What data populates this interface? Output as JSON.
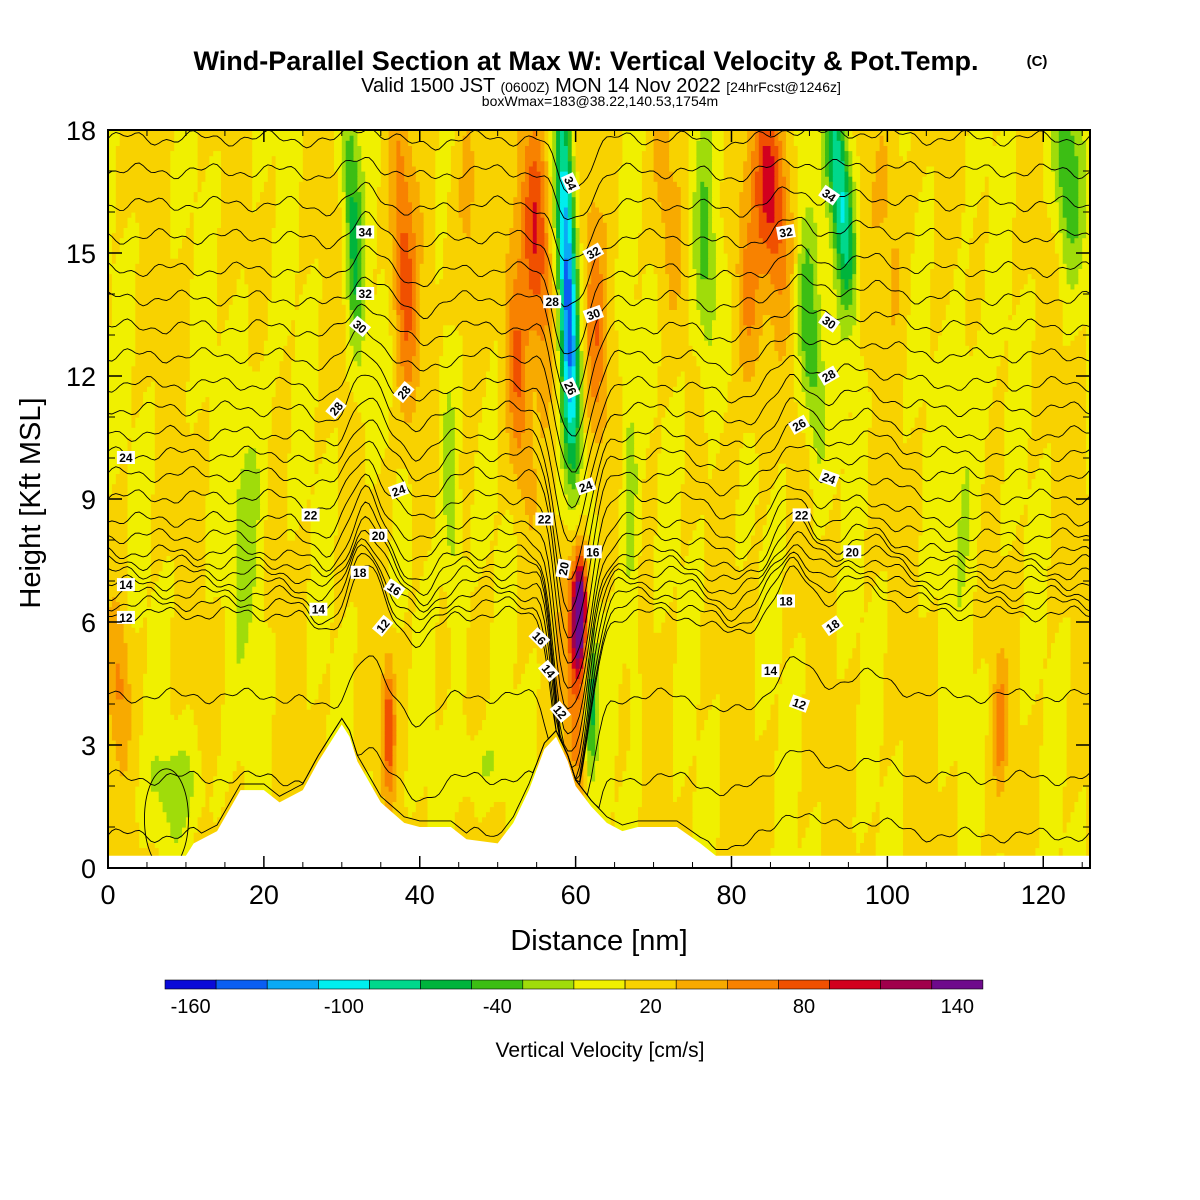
{
  "title": {
    "main": "Wind-Parallel Section at Max W: Vertical Velocity & Pot.Temp.",
    "copyright": "(C)",
    "sub_parts": [
      {
        "text": "Valid 1500 JST ",
        "size": "big"
      },
      {
        "text": "(0600Z)",
        "size": "small"
      },
      {
        "text": " MON 14 Nov 2022 ",
        "size": "big"
      },
      {
        "text": "[24hrFcst@1246z]",
        "size": "small"
      }
    ],
    "info": "boxWmax=183@38.22,140.53,1754m"
  },
  "chart_data": {
    "type": "heatmap",
    "xlabel": "Distance [nm]",
    "ylabel": "Height [Kft MSL]",
    "xlim": [
      0,
      126
    ],
    "ylim": [
      0,
      18
    ],
    "xticks": [
      0,
      20,
      40,
      60,
      80,
      100,
      120
    ],
    "yticks": [
      0,
      3,
      6,
      9,
      12,
      15,
      18
    ],
    "colorbar": {
      "title": "Vertical Velocity [cm/s]",
      "levels": [
        -170,
        -150,
        -130,
        -110,
        -90,
        -70,
        -50,
        -30,
        -10,
        10,
        30,
        50,
        70,
        90,
        110,
        130,
        150,
        170
      ],
      "colors": [
        "#0a0ad8",
        "#0a5ef2",
        "#0aaaf5",
        "#00eeee",
        "#00d88c",
        "#00b43c",
        "#3cbe14",
        "#a0dc0a",
        "#f0f000",
        "#f8d200",
        "#f8aa00",
        "#f88200",
        "#f05000",
        "#d2001e",
        "#a0004b",
        "#6e0a8c"
      ],
      "tick_labels": [
        "-160",
        "-100",
        "-40",
        "20",
        "80",
        "140"
      ],
      "tick_values": [
        -160,
        -100,
        -40,
        20,
        80,
        140
      ]
    },
    "terrain": [
      [
        0,
        0.3
      ],
      [
        10,
        0.3
      ],
      [
        11,
        0.6
      ],
      [
        14,
        0.9
      ],
      [
        17,
        1.9
      ],
      [
        20,
        1.9
      ],
      [
        22,
        1.6
      ],
      [
        25,
        1.9
      ],
      [
        27,
        2.6
      ],
      [
        29,
        3.2
      ],
      [
        30,
        3.5
      ],
      [
        31,
        3.2
      ],
      [
        32,
        2.6
      ],
      [
        35,
        1.6
      ],
      [
        38,
        1.1
      ],
      [
        40,
        1.0
      ],
      [
        44,
        1.0
      ],
      [
        46,
        0.7
      ],
      [
        50,
        0.6
      ],
      [
        52,
        1.1
      ],
      [
        54,
        1.9
      ],
      [
        56,
        2.9
      ],
      [
        57.5,
        3.2
      ],
      [
        59,
        2.6
      ],
      [
        60,
        2.0
      ],
      [
        62,
        1.5
      ],
      [
        64,
        1.1
      ],
      [
        66,
        0.9
      ],
      [
        68,
        1.0
      ],
      [
        73,
        1.0
      ],
      [
        76,
        0.6
      ],
      [
        78,
        0.3
      ],
      [
        126,
        0.3
      ]
    ],
    "updrafts": [
      {
        "x": 60.5,
        "y": 6.3,
        "sx": 0.9,
        "sy": 1.4,
        "amp": 150,
        "slope": 0.08
      },
      {
        "x": 60.0,
        "y": 5.2,
        "sx": 1.6,
        "sy": 3.5,
        "amp": 55,
        "slope": 0.0
      },
      {
        "x": 55.0,
        "y": 15.5,
        "sx": 1.9,
        "sy": 3.2,
        "amp": 80,
        "slope": -0.25
      },
      {
        "x": 52.5,
        "y": 12.0,
        "sx": 1.4,
        "sy": 3.0,
        "amp": 50,
        "slope": -0.2
      },
      {
        "x": 62.5,
        "y": 13.0,
        "sx": 1.4,
        "sy": 3.0,
        "amp": 50,
        "slope": -0.15
      },
      {
        "x": 85.0,
        "y": 16.5,
        "sx": 2.3,
        "sy": 2.5,
        "amp": 80,
        "slope": -0.3
      },
      {
        "x": 82.0,
        "y": 14.0,
        "sx": 1.8,
        "sy": 3.0,
        "amp": 45,
        "slope": -0.3
      },
      {
        "x": 38.0,
        "y": 14.5,
        "sx": 1.6,
        "sy": 3.8,
        "amp": 65,
        "slope": -0.2
      },
      {
        "x": 36.0,
        "y": 3.5,
        "sx": 0.8,
        "sy": 1.6,
        "amp": 70,
        "slope": 0.0
      },
      {
        "x": 1.5,
        "y": 4.5,
        "sx": 1.3,
        "sy": 1.8,
        "amp": 40,
        "slope": 0.0
      },
      {
        "x": 114.5,
        "y": 3.5,
        "sx": 0.8,
        "sy": 1.5,
        "amp": 45,
        "slope": 0.0
      },
      {
        "x": 46.5,
        "y": 15.5,
        "sx": 2.0,
        "sy": 3.5,
        "amp": 30,
        "slope": -0.2
      },
      {
        "x": 100.5,
        "y": 16.0,
        "sx": 2.0,
        "sy": 3.0,
        "amp": 25,
        "slope": -0.2
      },
      {
        "x": 71.5,
        "y": 16.0,
        "sx": 2.0,
        "sy": 3.0,
        "amp": 25,
        "slope": -0.2
      }
    ],
    "downdrafts": [
      {
        "x": 59.0,
        "y": 14.0,
        "sx": 1.2,
        "sy": 4.8,
        "amp": 150,
        "slope": -0.15
      },
      {
        "x": 62.0,
        "y": 4.0,
        "sx": 0.8,
        "sy": 1.8,
        "amp": 80,
        "slope": 0.1
      },
      {
        "x": 31.5,
        "y": 15.5,
        "sx": 1.2,
        "sy": 3.5,
        "amp": 70,
        "slope": -0.2
      },
      {
        "x": 94.0,
        "y": 16.5,
        "sx": 1.5,
        "sy": 2.8,
        "amp": 110,
        "slope": -0.4
      },
      {
        "x": 90.0,
        "y": 13.0,
        "sx": 1.5,
        "sy": 3.0,
        "amp": 60,
        "slope": -0.3
      },
      {
        "x": 123.0,
        "y": 17.0,
        "sx": 1.8,
        "sy": 2.5,
        "amp": 60,
        "slope": -0.2
      },
      {
        "x": 76.5,
        "y": 15.0,
        "sx": 1.6,
        "sy": 3.5,
        "amp": 50,
        "slope": -0.2
      },
      {
        "x": 44.0,
        "y": 9.0,
        "sx": 1.2,
        "sy": 4.0,
        "amp": 40,
        "slope": -0.2
      },
      {
        "x": 67.0,
        "y": 9.0,
        "sx": 1.2,
        "sy": 4.5,
        "amp": 35,
        "slope": -0.1
      },
      {
        "x": 18.0,
        "y": 9.0,
        "sx": 2.5,
        "sy": 4.0,
        "amp": 30,
        "slope": 0.0
      },
      {
        "x": 9.0,
        "y": 2.0,
        "sx": 4.0,
        "sy": 1.2,
        "amp": 30,
        "slope": 0.0
      },
      {
        "x": 110.0,
        "y": 10.0,
        "sx": 2.5,
        "sy": 4.0,
        "amp": 25,
        "slope": 0.0
      },
      {
        "x": 48.0,
        "y": 2.5,
        "sx": 4.0,
        "sy": 1.0,
        "amp": 25,
        "slope": 0.0
      }
    ],
    "theta_field": {
      "levels": [
        10,
        11,
        12,
        13,
        14,
        15,
        16,
        17,
        18,
        19,
        20,
        21,
        22,
        23,
        24,
        25,
        26,
        27,
        28,
        29,
        30,
        31,
        32,
        33,
        34,
        35
      ],
      "base_heights": [
        0.8,
        2.2,
        4.2,
        6.2,
        6.45,
        6.7,
        6.95,
        7.2,
        7.45,
        7.7,
        8.1,
        8.5,
        9.05,
        9.6,
        10.1,
        10.6,
        11.2,
        11.8,
        12.5,
        13.2,
        13.9,
        14.6,
        15.4,
        16.2,
        17.0,
        17.8
      ],
      "disturbances": [
        {
          "x": 60.0,
          "width": 2.6,
          "amp": -4.5
        },
        {
          "x": 58.0,
          "width": 1.5,
          "amp": -1.6
        },
        {
          "x": 33.0,
          "width": 2.5,
          "amp": 1.2
        },
        {
          "x": 40.0,
          "width": 3.0,
          "amp": -0.7
        },
        {
          "x": 28.0,
          "width": 3.0,
          "amp": -0.4
        },
        {
          "x": 88.0,
          "width": 3.0,
          "amp": 1.0
        },
        {
          "x": 97.0,
          "width": 5.0,
          "amp": 0.6
        },
        {
          "x": 80.0,
          "width": 4.0,
          "amp": -0.5
        }
      ]
    },
    "contour_labels": [
      {
        "x": 59.3,
        "y": 16.7,
        "text": "34",
        "angle": 65
      },
      {
        "x": 33.0,
        "y": 15.5,
        "text": "34",
        "angle": 0
      },
      {
        "x": 92.5,
        "y": 16.4,
        "text": "34",
        "angle": 35
      },
      {
        "x": 62.3,
        "y": 15.0,
        "text": "32",
        "angle": -30
      },
      {
        "x": 33.0,
        "y": 14.0,
        "text": "32",
        "angle": 0
      },
      {
        "x": 87.0,
        "y": 15.5,
        "text": "32",
        "angle": -10
      },
      {
        "x": 57.0,
        "y": 13.8,
        "text": "28",
        "angle": 0
      },
      {
        "x": 62.3,
        "y": 13.5,
        "text": "30",
        "angle": -20
      },
      {
        "x": 32.3,
        "y": 13.2,
        "text": "30",
        "angle": 40
      },
      {
        "x": 92.5,
        "y": 13.3,
        "text": "30",
        "angle": 35
      },
      {
        "x": 59.3,
        "y": 11.7,
        "text": "26",
        "angle": 65
      },
      {
        "x": 29.3,
        "y": 11.2,
        "text": "28",
        "angle": -50
      },
      {
        "x": 38.0,
        "y": 11.6,
        "text": "28",
        "angle": -50
      },
      {
        "x": 92.5,
        "y": 12.0,
        "text": "28",
        "angle": -30
      },
      {
        "x": 2.3,
        "y": 10.0,
        "text": "24",
        "angle": 0
      },
      {
        "x": 88.7,
        "y": 10.8,
        "text": "26",
        "angle": -30
      },
      {
        "x": 61.3,
        "y": 9.3,
        "text": "24",
        "angle": -20
      },
      {
        "x": 37.3,
        "y": 9.2,
        "text": "24",
        "angle": -20
      },
      {
        "x": 92.5,
        "y": 9.5,
        "text": "24",
        "angle": 20
      },
      {
        "x": 26.0,
        "y": 8.6,
        "text": "22",
        "angle": 0
      },
      {
        "x": 56.0,
        "y": 8.5,
        "text": "22",
        "angle": 0
      },
      {
        "x": 89.0,
        "y": 8.6,
        "text": "22",
        "angle": 0
      },
      {
        "x": 34.7,
        "y": 8.1,
        "text": "20",
        "angle": 0
      },
      {
        "x": 58.5,
        "y": 7.3,
        "text": "20",
        "angle": -80
      },
      {
        "x": 62.2,
        "y": 7.7,
        "text": "16",
        "angle": 0
      },
      {
        "x": 95.5,
        "y": 7.7,
        "text": "20",
        "angle": 0
      },
      {
        "x": 32.3,
        "y": 7.2,
        "text": "18",
        "angle": 0
      },
      {
        "x": 36.7,
        "y": 6.8,
        "text": "16",
        "angle": 35
      },
      {
        "x": 2.3,
        "y": 6.9,
        "text": "14",
        "angle": 0
      },
      {
        "x": 87.0,
        "y": 6.5,
        "text": "18",
        "angle": 0
      },
      {
        "x": 27.0,
        "y": 6.3,
        "text": "14",
        "angle": 0
      },
      {
        "x": 2.3,
        "y": 6.1,
        "text": "12",
        "angle": 0
      },
      {
        "x": 35.3,
        "y": 5.9,
        "text": "12",
        "angle": -50
      },
      {
        "x": 55.3,
        "y": 5.6,
        "text": "16",
        "angle": 45
      },
      {
        "x": 93.0,
        "y": 5.9,
        "text": "18",
        "angle": -35
      },
      {
        "x": 56.5,
        "y": 4.8,
        "text": "14",
        "angle": 50
      },
      {
        "x": 85.0,
        "y": 4.8,
        "text": "14",
        "angle": 0
      },
      {
        "x": 58.0,
        "y": 3.8,
        "text": "12",
        "angle": 50
      },
      {
        "x": 88.7,
        "y": 4.0,
        "text": "12",
        "angle": 20
      }
    ]
  }
}
